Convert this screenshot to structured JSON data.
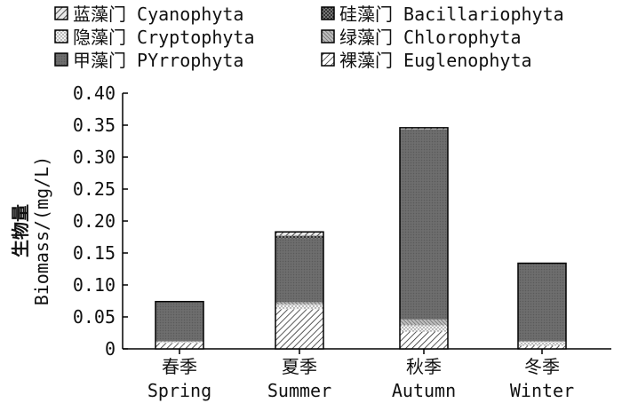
{
  "chart_data": {
    "type": "bar",
    "stacked": true,
    "title": "",
    "xlabel": "",
    "ylabel_cn": "生物量",
    "ylabel": "Biomass/(mg/L)",
    "ylim": [
      0,
      0.4
    ],
    "yticks": [
      "0",
      "0.05",
      "0.10",
      "0.15",
      "0.20",
      "0.25",
      "0.30",
      "0.35",
      "0.40"
    ],
    "categories_cn": [
      "春季",
      "夏季",
      "秋季",
      "冬季"
    ],
    "categories": [
      "Spring",
      "Summer",
      "Autumn",
      "Winter"
    ],
    "legend": [
      {
        "cn": "蓝藻门",
        "name": "Cyanophyta",
        "pattern": "pat-cyano"
      },
      {
        "cn": "硅藻门",
        "name": "Bacillariophyta",
        "pattern": "pat-bacil"
      },
      {
        "cn": "隐藻门",
        "name": "Cryptophyta",
        "pattern": "pat-crypto"
      },
      {
        "cn": "绿藻门",
        "name": "Chlorophyta",
        "pattern": "pat-chloro"
      },
      {
        "cn": "甲藻门",
        "name": "PYrrophyta",
        "pattern": "pat-pyrro"
      },
      {
        "cn": "裸藻门",
        "name": "Euglenophyta",
        "pattern": "pat-eugl"
      }
    ],
    "stack_order": [
      "Euglenophyta",
      "Cryptophyta",
      "Chlorophyta",
      "PYrrophyta",
      "Bacillariophyta",
      "Cyanophyta"
    ],
    "series": [
      {
        "name": "Euglenophyta",
        "values": [
          0.009,
          0.062,
          0.027,
          0.005
        ]
      },
      {
        "name": "Cryptophyta",
        "values": [
          0.002,
          0.007,
          0.01,
          0.006
        ]
      },
      {
        "name": "Chlorophyta",
        "values": [
          0.001,
          0.004,
          0.009,
          0.001
        ]
      },
      {
        "name": "PYrrophyta",
        "values": [
          0.062,
          0.1,
          0.298,
          0.122
        ]
      },
      {
        "name": "Bacillariophyta",
        "values": [
          0.0,
          0.004,
          0.0,
          0.0
        ]
      },
      {
        "name": "Cyanophyta",
        "values": [
          0.0,
          0.006,
          0.002,
          0.0
        ]
      }
    ]
  }
}
